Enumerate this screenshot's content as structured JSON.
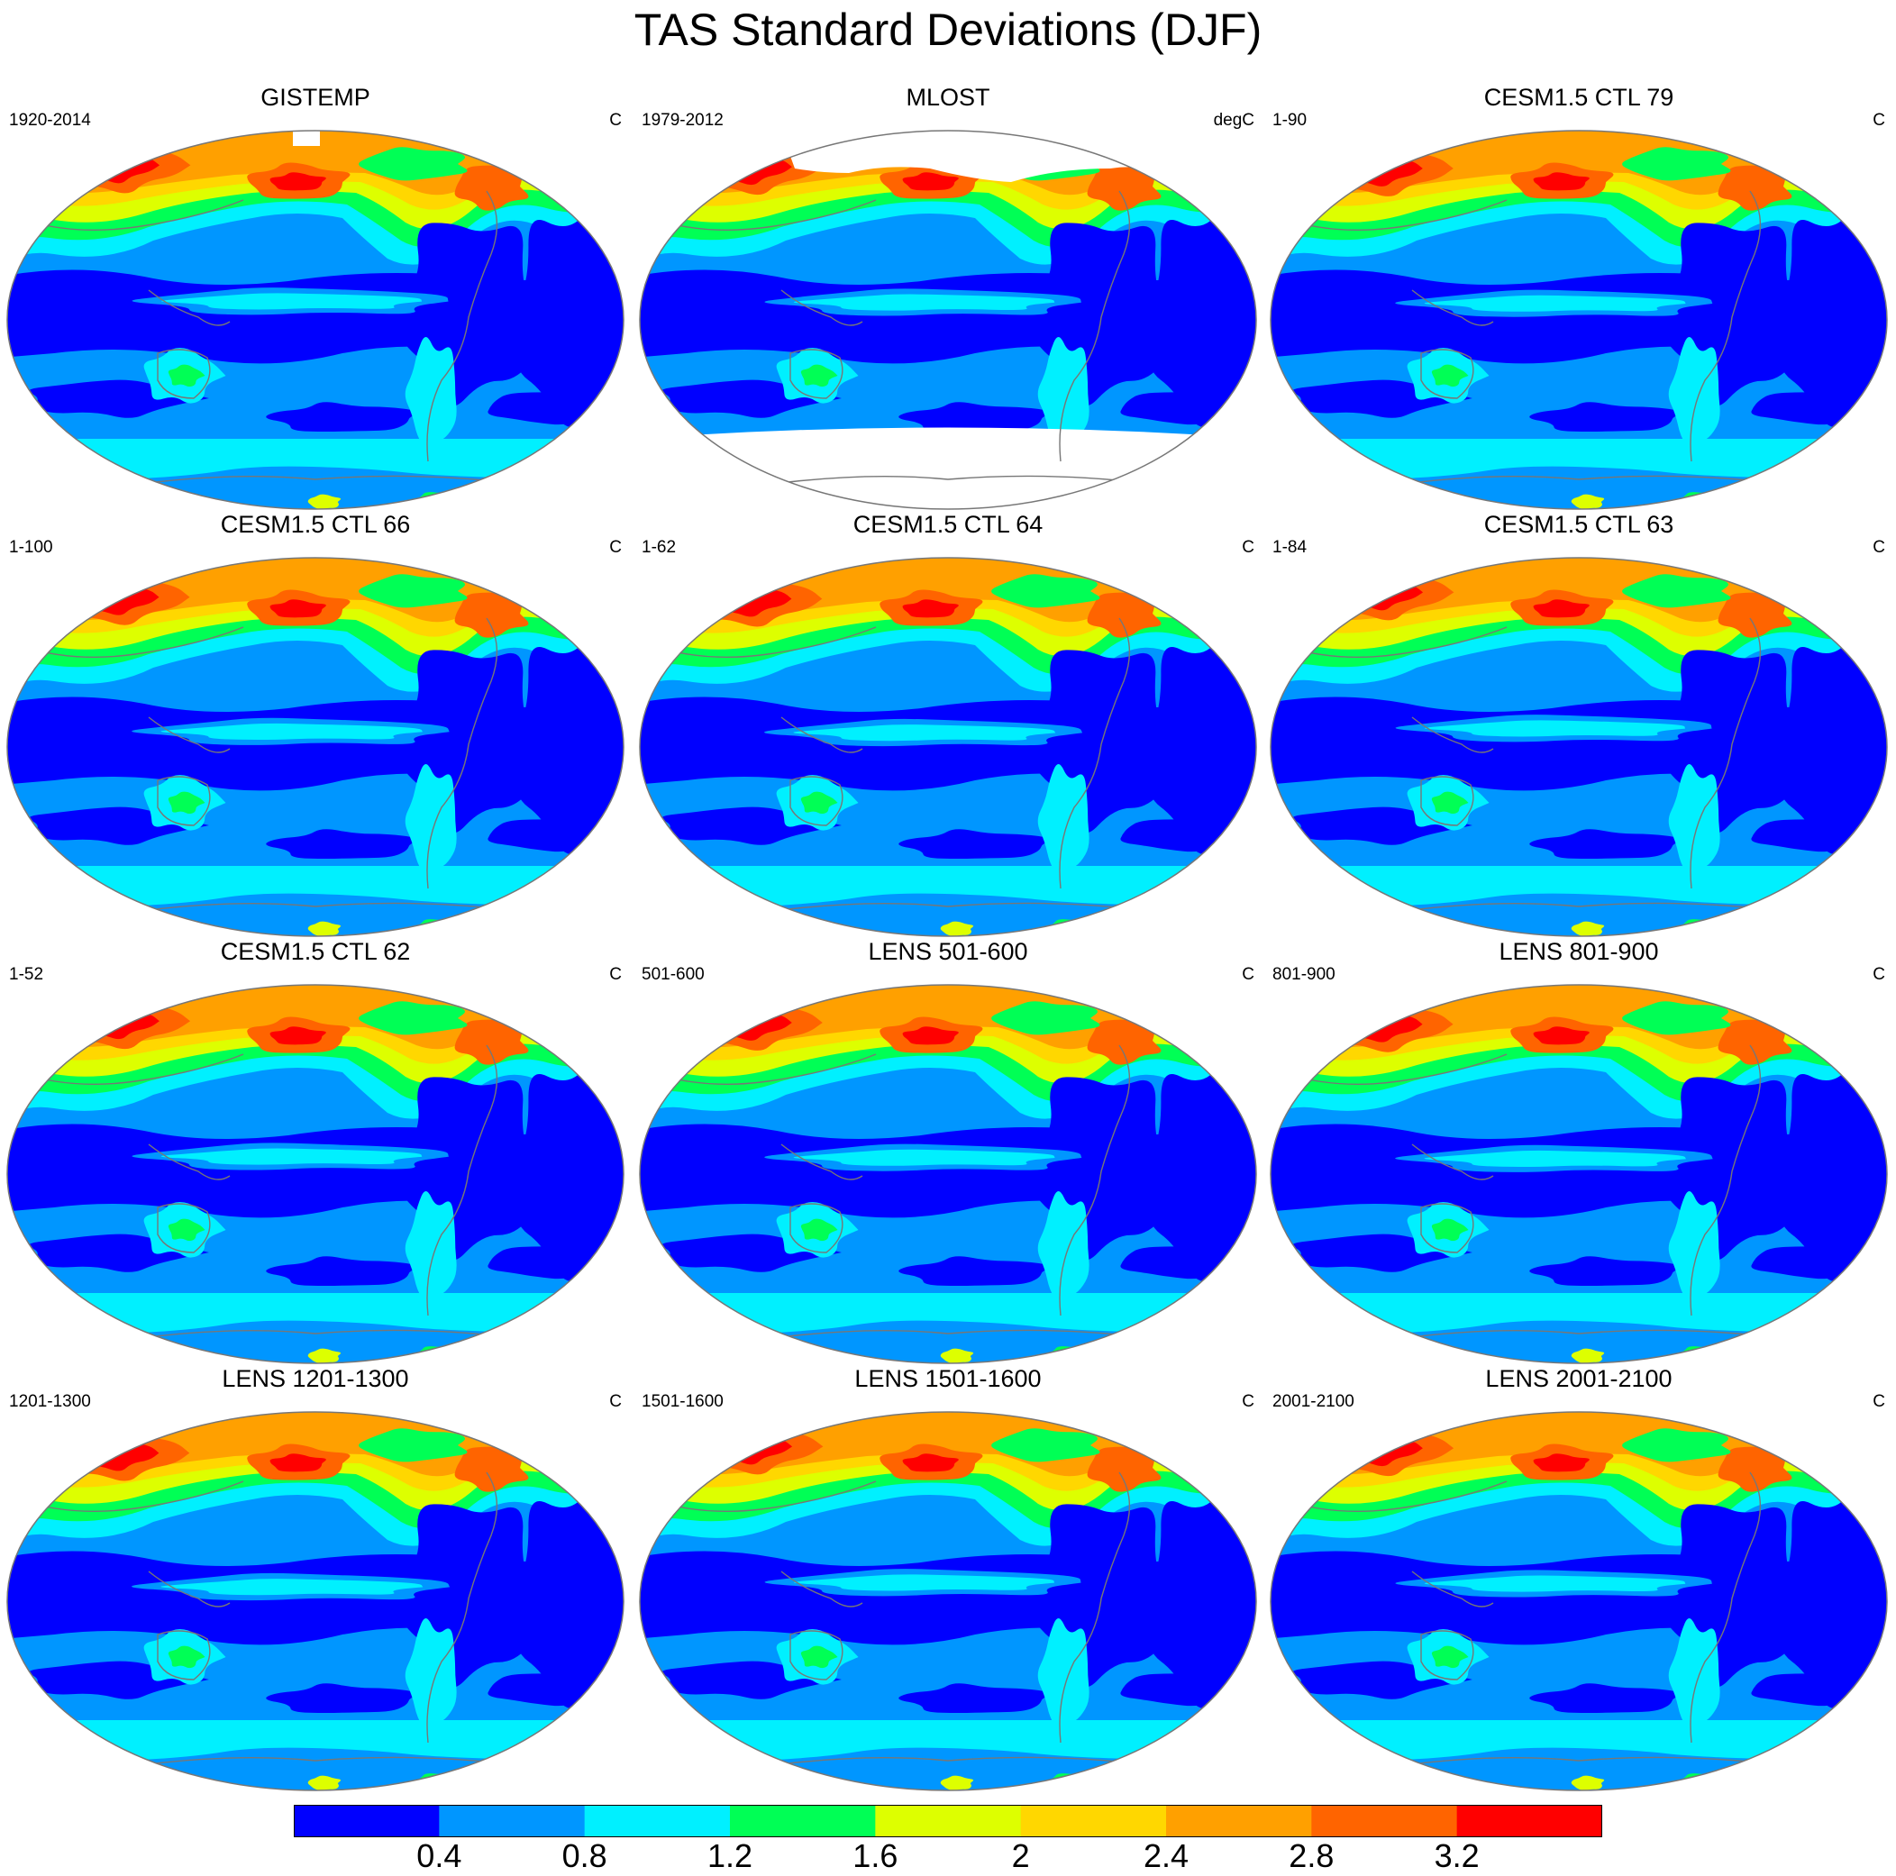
{
  "title": "TAS Standard Deviations (DJF)",
  "colors": {
    "palette": [
      "#0000FF",
      "#0096FF",
      "#00F0FF",
      "#00FF55",
      "#DDFF00",
      "#FFD700",
      "#FFA000",
      "#FF6400",
      "#FF0000"
    ],
    "coast": "#777777",
    "missing": "#FFFFFF",
    "outline": "#777777"
  },
  "panels": [
    {
      "title": "GISTEMP",
      "left": "1920-2014",
      "right": "C",
      "missing": "gistemp"
    },
    {
      "title": "MLOST",
      "left": "1979-2012",
      "right": "degC",
      "missing": "mlost"
    },
    {
      "title": "CESM1.5 CTL 79",
      "left": "1-90",
      "right": "C",
      "missing": "none"
    },
    {
      "title": "CESM1.5 CTL 66",
      "left": "1-100",
      "right": "C",
      "missing": "none"
    },
    {
      "title": "CESM1.5 CTL 64",
      "left": "1-62",
      "right": "C",
      "missing": "none"
    },
    {
      "title": "CESM1.5 CTL 63",
      "left": "1-84",
      "right": "C",
      "missing": "none"
    },
    {
      "title": "CESM1.5 CTL 62",
      "left": "1-52",
      "right": "C",
      "missing": "none"
    },
    {
      "title": "LENS 501-600",
      "left": "501-600",
      "right": "C",
      "missing": "none"
    },
    {
      "title": "LENS 801-900",
      "left": "801-900",
      "right": "C",
      "missing": "none"
    },
    {
      "title": "LENS 1201-1300",
      "left": "1201-1300",
      "right": "C",
      "missing": "none"
    },
    {
      "title": "LENS 1501-1600",
      "left": "1501-1600",
      "right": "C",
      "missing": "none"
    },
    {
      "title": "LENS 2001-2100",
      "left": "2001-2100",
      "right": "C",
      "missing": "none"
    }
  ],
  "colorbar": {
    "labels": [
      "0.4",
      "0.8",
      "1.2",
      "1.6",
      "2",
      "2.4",
      "2.8",
      "3.2"
    ],
    "levels": [
      0.4,
      0.8,
      1.2,
      1.6,
      2.0,
      2.4,
      2.8,
      3.2
    ]
  }
}
